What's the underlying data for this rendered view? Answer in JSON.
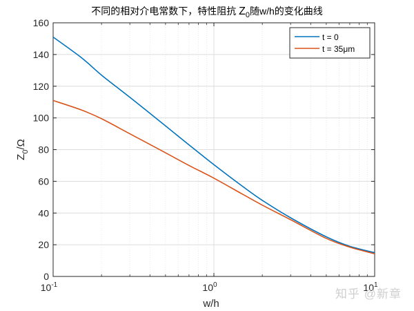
{
  "chart_data": {
    "type": "line",
    "title": "不同的相对介电常数下，特性阻抗 Z0随w/h的变化曲线",
    "title_parts": {
      "prefix": "不同的相对介电常数下，特性阻抗 ",
      "sym": "Z",
      "sub": "0",
      "suffix": "随w/h的变化曲线"
    },
    "xlabel": "w/h",
    "ylabel": "Z0/Ω",
    "ylabel_parts": {
      "sym": "Z",
      "sub": "0",
      "unit": "/Ω"
    },
    "xscale": "log",
    "xlim": [
      0.1,
      10
    ],
    "ylim": [
      0,
      160
    ],
    "xticks": [
      {
        "base": "10",
        "exp": "-1",
        "value": 0.1
      },
      {
        "base": "10",
        "exp": "0",
        "value": 1
      },
      {
        "base": "10",
        "exp": "1",
        "value": 10
      }
    ],
    "yticks": [
      0,
      20,
      40,
      60,
      80,
      100,
      120,
      140,
      160
    ],
    "grid": true,
    "legend_position": "upper right",
    "x": [
      0.1,
      0.15,
      0.2,
      0.3,
      0.5,
      0.7,
      1,
      1.5,
      2,
      3,
      5,
      7,
      10
    ],
    "series": [
      {
        "name": "t = 0",
        "color": "#0072BD",
        "values": [
          151,
          138,
          127,
          113,
          95,
          83,
          70.5,
          57,
          48,
          37,
          25,
          19,
          15
        ]
      },
      {
        "name": "t = 35μm",
        "color": "#D95319",
        "values": [
          111,
          105,
          99.5,
          90,
          78,
          70,
          62,
          52,
          45,
          35.8,
          24,
          18.5,
          14.3
        ]
      }
    ]
  },
  "legend": [
    {
      "label": "t = 0",
      "color": "#0072BD"
    },
    {
      "label": "t = 35μm",
      "color": "#D95319"
    }
  ],
  "watermark": "知乎 @新章"
}
